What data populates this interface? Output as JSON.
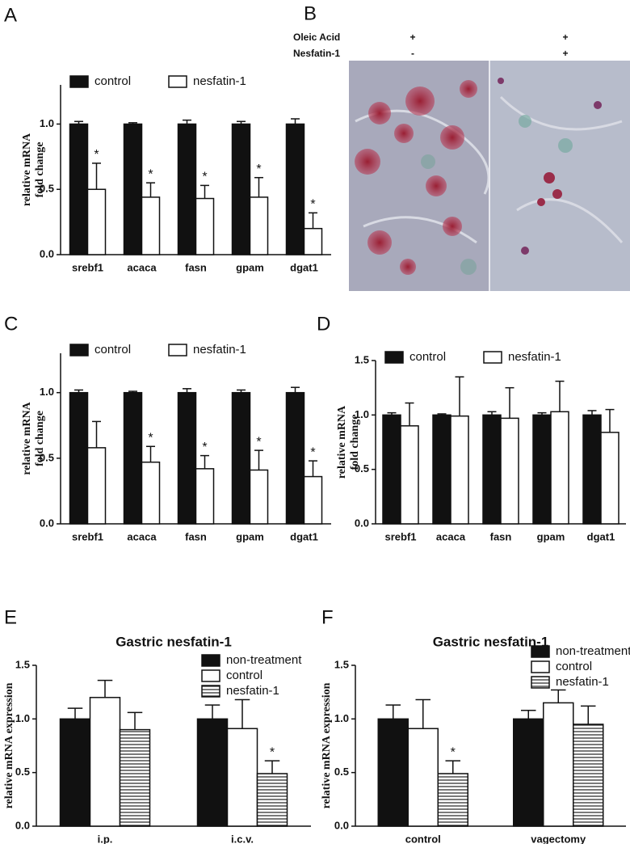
{
  "chart_data": [
    {
      "type": "bar",
      "panel": "A",
      "ylabel": [
        "relative mRNA",
        "fold change"
      ],
      "legend": "top",
      "categories": [
        "srebf1",
        "acaca",
        "fasn",
        "gpam",
        "dgat1"
      ],
      "ylim": [
        0,
        1.3
      ],
      "yticks": [
        {
          "value": 0,
          "label": "0.0"
        },
        {
          "value": 0.5,
          "label": "0.5"
        },
        {
          "value": 1,
          "label": "1.0"
        }
      ],
      "series": [
        {
          "name": "control",
          "color": "#111111",
          "values": [
            1.0,
            1.0,
            1.0,
            1.0,
            1.0
          ],
          "errors": [
            0.02,
            0.01,
            0.03,
            0.02,
            0.04
          ],
          "marks": [
            null,
            null,
            null,
            null,
            null
          ]
        },
        {
          "name": "nesfatin-1",
          "color": "#ffffff",
          "values": [
            0.5,
            0.44,
            0.43,
            0.44,
            0.2
          ],
          "errors": [
            0.2,
            0.11,
            0.1,
            0.15,
            0.12
          ],
          "marks": [
            "*",
            "*",
            "*",
            "*",
            "*"
          ]
        }
      ]
    },
    {
      "type": "bar",
      "panel": "C",
      "ylabel": [
        "relative mRNA",
        "fold change"
      ],
      "legend": "top",
      "categories": [
        "srebf1",
        "acaca",
        "fasn",
        "gpam",
        "dgat1"
      ],
      "ylim": [
        0,
        1.3
      ],
      "yticks": [
        {
          "value": 0,
          "label": "0.0"
        },
        {
          "value": 0.5,
          "label": "0.5"
        },
        {
          "value": 1,
          "label": "1.0"
        }
      ],
      "series": [
        {
          "name": "control",
          "color": "#111111",
          "values": [
            1.0,
            1.0,
            1.0,
            1.0,
            1.0
          ],
          "errors": [
            0.02,
            0.01,
            0.03,
            0.02,
            0.04
          ],
          "marks": [
            null,
            null,
            null,
            null,
            null
          ]
        },
        {
          "name": "nesfatin-1",
          "color": "#ffffff",
          "values": [
            0.58,
            0.47,
            0.42,
            0.41,
            0.36
          ],
          "errors": [
            0.2,
            0.12,
            0.1,
            0.15,
            0.12
          ],
          "marks": [
            null,
            "*",
            "*",
            "*",
            "*"
          ]
        }
      ]
    },
    {
      "type": "bar",
      "panel": "D",
      "ylabel": [
        "relative mRNA",
        "fold change"
      ],
      "legend": "top",
      "categories": [
        "srebf1",
        "acaca",
        "fasn",
        "gpam",
        "dgat1"
      ],
      "ylim": [
        0,
        1.5
      ],
      "yticks": [
        {
          "value": 0,
          "label": "0.0"
        },
        {
          "value": 0.5,
          "label": "0.5"
        },
        {
          "value": 1,
          "label": "1.0"
        },
        {
          "value": 1.5,
          "label": "1.5"
        }
      ],
      "series": [
        {
          "name": "control",
          "color": "#111111",
          "values": [
            1.0,
            1.0,
            1.0,
            1.0,
            1.0
          ],
          "errors": [
            0.02,
            0.01,
            0.03,
            0.02,
            0.04
          ],
          "marks": [
            null,
            null,
            null,
            null,
            null
          ]
        },
        {
          "name": "nesfatin-1",
          "color": "#ffffff",
          "values": [
            0.9,
            0.99,
            0.97,
            1.03,
            0.84
          ],
          "errors": [
            0.21,
            0.36,
            0.28,
            0.28,
            0.21
          ],
          "marks": [
            null,
            null,
            null,
            null,
            null
          ]
        }
      ]
    },
    {
      "type": "bar",
      "panel": "E",
      "title": "Gastric nesfatin-1",
      "ylabel": [
        "relative mRNA expression"
      ],
      "legend": "upper right",
      "categories": [
        "i.p.",
        "i.c.v."
      ],
      "ylim": [
        0,
        1.5
      ],
      "yticks": [
        {
          "value": 0,
          "label": "0.0"
        },
        {
          "value": 0.5,
          "label": "0.5"
        },
        {
          "value": 1,
          "label": "1.0"
        },
        {
          "value": 1.5,
          "label": "1.5"
        }
      ],
      "series": [
        {
          "name": "non-treatment",
          "color": "#111111",
          "values": [
            1.0,
            1.0
          ],
          "errors": [
            0.1,
            0.13
          ],
          "marks": [
            null,
            null
          ]
        },
        {
          "name": "control",
          "color": "#ffffff",
          "values": [
            1.2,
            0.91
          ],
          "errors": [
            0.16,
            0.27
          ],
          "marks": [
            null,
            null
          ]
        },
        {
          "name": "nesfatin-1",
          "color": "#ffffff",
          "hatch": true,
          "values": [
            0.9,
            0.49
          ],
          "errors": [
            0.16,
            0.12
          ],
          "marks": [
            null,
            "*"
          ]
        }
      ]
    },
    {
      "type": "bar",
      "panel": "F",
      "title": "Gastric nesfatin-1",
      "ylabel": [
        "relative mRNA expression"
      ],
      "legend": "upper right",
      "categories": [
        "control",
        "vagectomy"
      ],
      "ylim": [
        0,
        1.5
      ],
      "yticks": [
        {
          "value": 0,
          "label": "0.0"
        },
        {
          "value": 0.5,
          "label": "0.5"
        },
        {
          "value": 1,
          "label": "1.0"
        },
        {
          "value": 1.5,
          "label": "1.5"
        }
      ],
      "series": [
        {
          "name": "non-treatment",
          "color": "#111111",
          "values": [
            1.0,
            1.0
          ],
          "errors": [
            0.13,
            0.08
          ],
          "marks": [
            null,
            null
          ]
        },
        {
          "name": "control",
          "color": "#ffffff",
          "values": [
            0.91,
            1.15
          ],
          "errors": [
            0.27,
            0.12
          ],
          "marks": [
            null,
            null
          ]
        },
        {
          "name": "nesfatin-1",
          "color": "#ffffff",
          "hatch": true,
          "values": [
            0.49,
            0.95
          ],
          "errors": [
            0.12,
            0.17
          ],
          "marks": [
            "*",
            null
          ]
        }
      ]
    }
  ],
  "image_panel": {
    "panel": "B",
    "rows": [
      {
        "label": "Oleic Acid",
        "left": "+",
        "right": "+"
      },
      {
        "label": "Nesfatin-1",
        "left": "-",
        "right": "+"
      }
    ]
  }
}
